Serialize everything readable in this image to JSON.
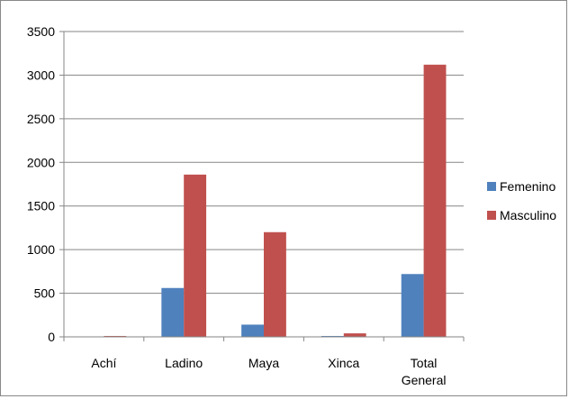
{
  "chart_data": {
    "type": "bar",
    "categories": [
      "Achí",
      "Ladino",
      "Maya",
      "Xinca",
      "Total General"
    ],
    "series": [
      {
        "name": "Femenino",
        "values": [
          0,
          560,
          140,
          10,
          720
        ],
        "color": "#4f81bd"
      },
      {
        "name": "Masculino",
        "values": [
          10,
          1860,
          1200,
          40,
          3120
        ],
        "color": "#c0504d"
      }
    ],
    "yticks": [
      "0",
      "500",
      "1000",
      "1500",
      "2000",
      "2500",
      "3000",
      "3500"
    ],
    "ylim": [
      0,
      3500
    ],
    "grid": true,
    "legend": "right",
    "title": "",
    "xlabel": "",
    "ylabel": ""
  }
}
